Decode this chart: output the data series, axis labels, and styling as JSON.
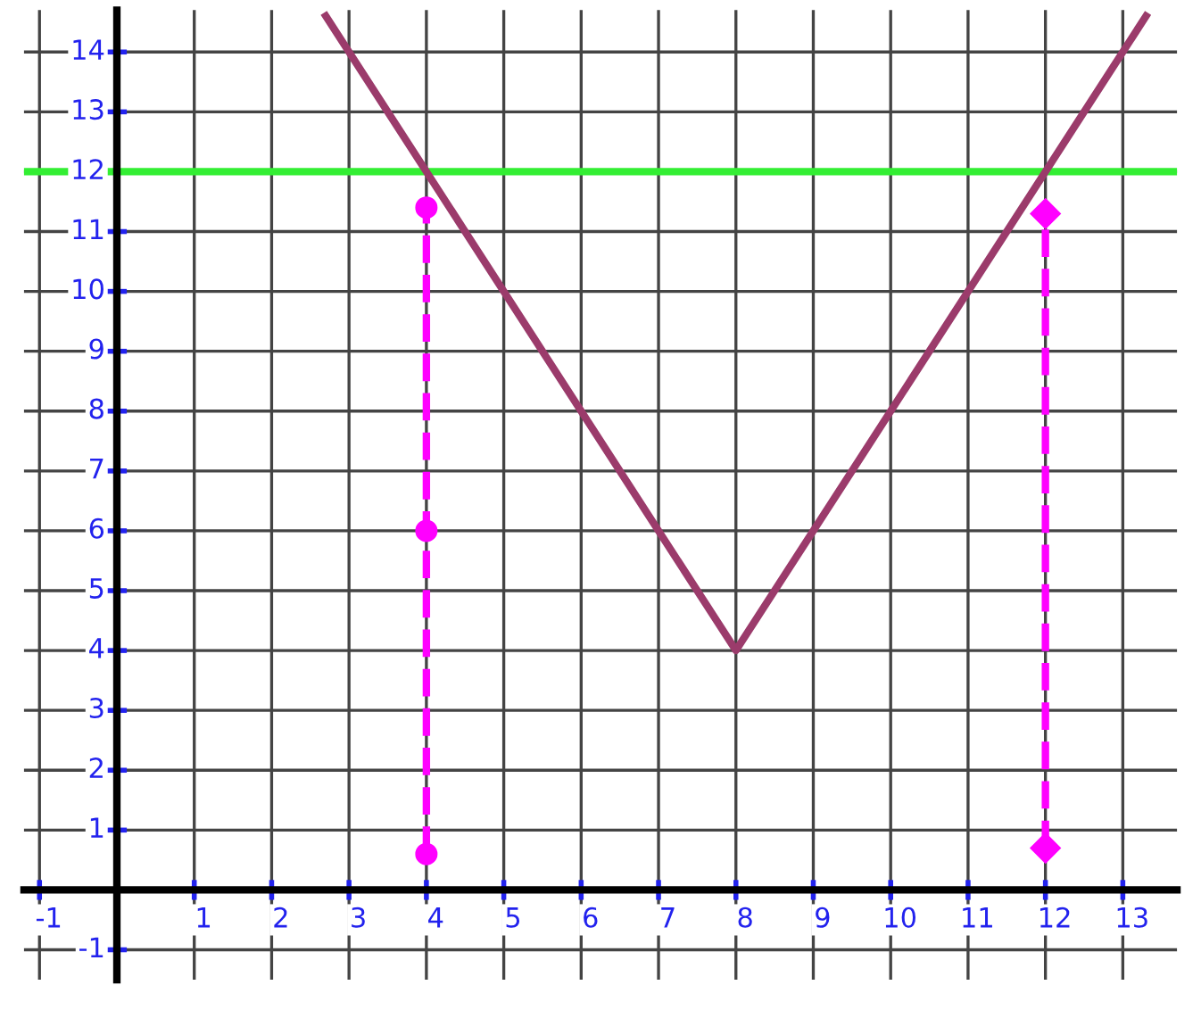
{
  "chart_data": {
    "type": "line",
    "xlim": [
      -1.2,
      13.7
    ],
    "ylim": [
      -1.5,
      14.7
    ],
    "xticks": [
      -1,
      1,
      2,
      3,
      4,
      5,
      6,
      7,
      8,
      9,
      10,
      11,
      12,
      13
    ],
    "yticks": [
      -1,
      1,
      2,
      3,
      4,
      5,
      6,
      7,
      8,
      9,
      10,
      11,
      12,
      13,
      14
    ],
    "grid": true,
    "series": [
      {
        "color": "#9b3b6b",
        "x": [
          2.7,
          8,
          13.3
        ],
        "values": [
          14.6,
          4,
          14.6
        ],
        "line_style": "solid",
        "marker": "none"
      },
      {
        "color": "#ff00ff",
        "x": [
          4,
          4,
          4
        ],
        "values": [
          0.6,
          6,
          11.4
        ],
        "line_style": "dashed",
        "marker": "circle"
      },
      {
        "color": "#ff00ff",
        "x": [
          12,
          12
        ],
        "values": [
          0.7,
          11.3
        ],
        "line_style": "dashed",
        "marker": "diamond"
      }
    ],
    "ref_lines": [
      {
        "axis": "y",
        "value": 12,
        "label": null,
        "color": "#33ee33",
        "line_style": "solid"
      }
    ]
  }
}
